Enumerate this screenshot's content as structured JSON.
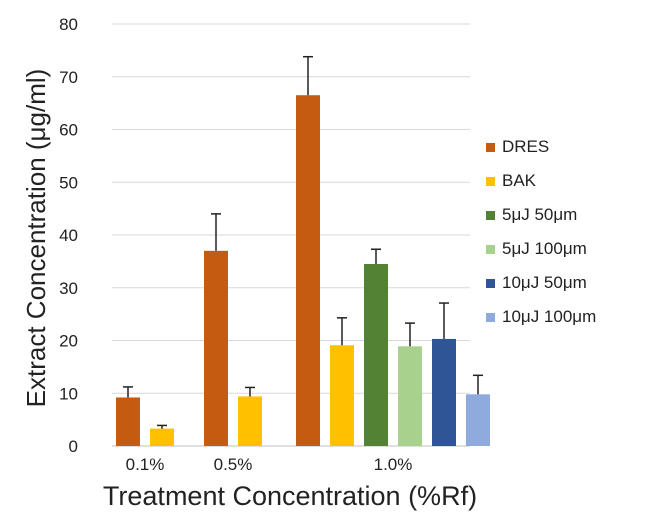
{
  "chart_data": {
    "type": "bar",
    "xlabel": "Treatment Concentration (%Rf)",
    "ylabel": "Extract Concentration (μg/ml)",
    "ylim": [
      0,
      80
    ],
    "yticks": [
      0,
      10,
      20,
      30,
      40,
      50,
      60,
      70,
      80
    ],
    "grid": true,
    "legend_position": "right",
    "categories": [
      "0.1%",
      "0.5%",
      "1.0%"
    ],
    "series": [
      {
        "name": "DRES",
        "color": "#C55A11",
        "values": [
          9.2,
          37,
          66.5
        ],
        "errors": [
          2.0,
          7.0,
          7.3
        ]
      },
      {
        "name": "BAK",
        "color": "#FFC000",
        "values": [
          3.3,
          9.4,
          19.1
        ],
        "errors": [
          0.6,
          1.7,
          5.2
        ]
      },
      {
        "name": "5μJ 50μm",
        "color": "#548235",
        "values": [
          null,
          null,
          34.5
        ],
        "errors": [
          null,
          null,
          2.8
        ]
      },
      {
        "name": "5μJ 100μm",
        "color": "#A9D18E",
        "values": [
          null,
          null,
          18.9
        ],
        "errors": [
          null,
          null,
          4.4
        ]
      },
      {
        "name": "10μJ 50μm",
        "color": "#2F5597",
        "values": [
          null,
          null,
          20.3
        ],
        "errors": [
          null,
          null,
          6.8
        ]
      },
      {
        "name": "10μJ 100μm",
        "color": "#8FAADC",
        "values": [
          null,
          null,
          9.8
        ],
        "errors": [
          null,
          null,
          3.6
        ]
      }
    ]
  }
}
